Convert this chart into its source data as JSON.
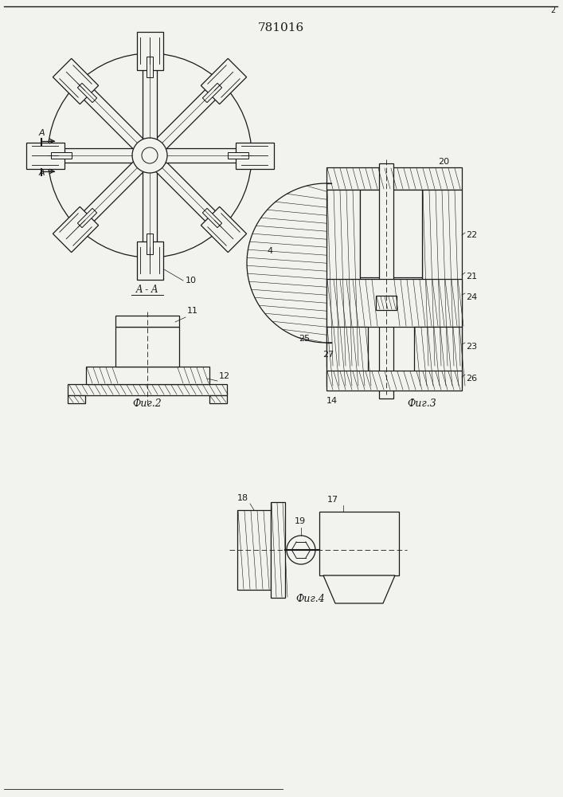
{
  "title": "781016",
  "bg_color": "#f2f2ee",
  "line_color": "#1a1a1a",
  "fig2_label": "Фиг.2",
  "fig3_label": "Фиг.3",
  "fig4_label": "Фиг.4",
  "aa_label": "A - A"
}
